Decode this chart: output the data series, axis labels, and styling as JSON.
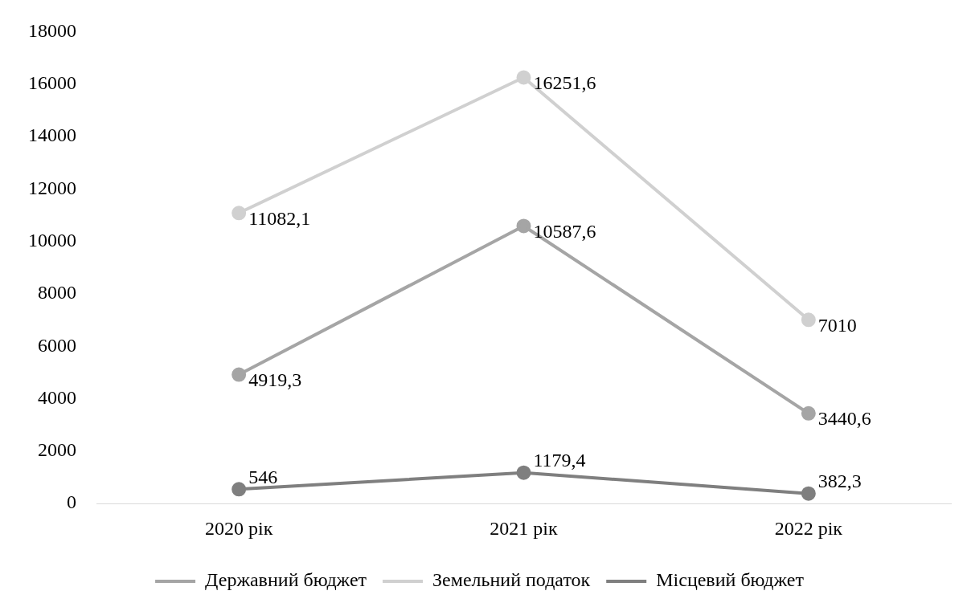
{
  "chart_data": {
    "type": "line",
    "categories": [
      "2020 рік",
      "2021 рік",
      "2022 рік"
    ],
    "series": [
      {
        "name": "Державний бюджет",
        "color": "#a5a5a5",
        "values": [
          4919.3,
          10587.6,
          3440.6
        ],
        "value_labels": [
          "4919,3",
          "10587,6",
          "3440,6"
        ]
      },
      {
        "name": "Земельний податок",
        "color": "#d0d0d0",
        "values": [
          11082.1,
          16251.6,
          7010
        ],
        "value_labels": [
          "11082,1",
          "16251,6",
          "7010"
        ]
      },
      {
        "name": "Місцевий бюджет",
        "color": "#7f7f7f",
        "values": [
          546,
          1179.4,
          382.3
        ],
        "value_labels": [
          "546",
          "1179,4",
          "382,3"
        ]
      }
    ],
    "ylim": [
      0,
      18000
    ],
    "yticks": [
      0,
      2000,
      4000,
      6000,
      8000,
      10000,
      12000,
      14000,
      16000,
      18000
    ],
    "grid": false,
    "legend": "bottom",
    "marker": "circle",
    "line_style": "solid"
  }
}
